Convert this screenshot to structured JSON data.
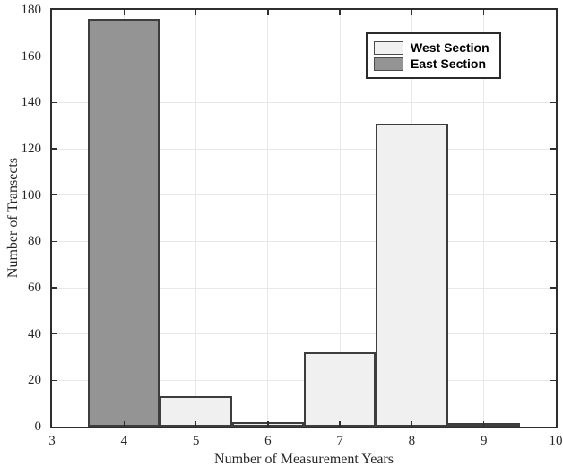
{
  "figure": {
    "background": "#ffffff"
  },
  "chart_data": {
    "type": "bar",
    "subtype": "histogram",
    "title": "",
    "xlabel": "Number of Measurement Years",
    "ylabel": "Number of Transects",
    "xlim": [
      3,
      10
    ],
    "ylim": [
      0,
      180
    ],
    "xticks": [
      3,
      4,
      5,
      6,
      7,
      8,
      9,
      10
    ],
    "yticks": [
      0,
      20,
      40,
      60,
      80,
      100,
      120,
      140,
      160,
      180
    ],
    "grid": "on",
    "bin_width": 1,
    "colors": {
      "axis": "#2e2e2e",
      "grid": "#e8e8e8",
      "bar_edge": "#3d3d3d",
      "west_fill": "#f0f0f0",
      "east_fill": "#949494",
      "tick_label": "#262626"
    },
    "legend": {
      "position": "top-right",
      "entries": [
        "West Section",
        "East Section"
      ]
    },
    "series": [
      {
        "name": "West Section",
        "fill": "#f0f0f0",
        "points": [
          {
            "x": 5,
            "y": 13
          },
          {
            "x": 6,
            "y": 2
          },
          {
            "x": 7,
            "y": 32
          },
          {
            "x": 8,
            "y": 131
          },
          {
            "x": 9,
            "y": 1
          }
        ]
      },
      {
        "name": "East Section",
        "fill": "#949494",
        "points": [
          {
            "x": 4,
            "y": 176
          }
        ]
      }
    ]
  }
}
